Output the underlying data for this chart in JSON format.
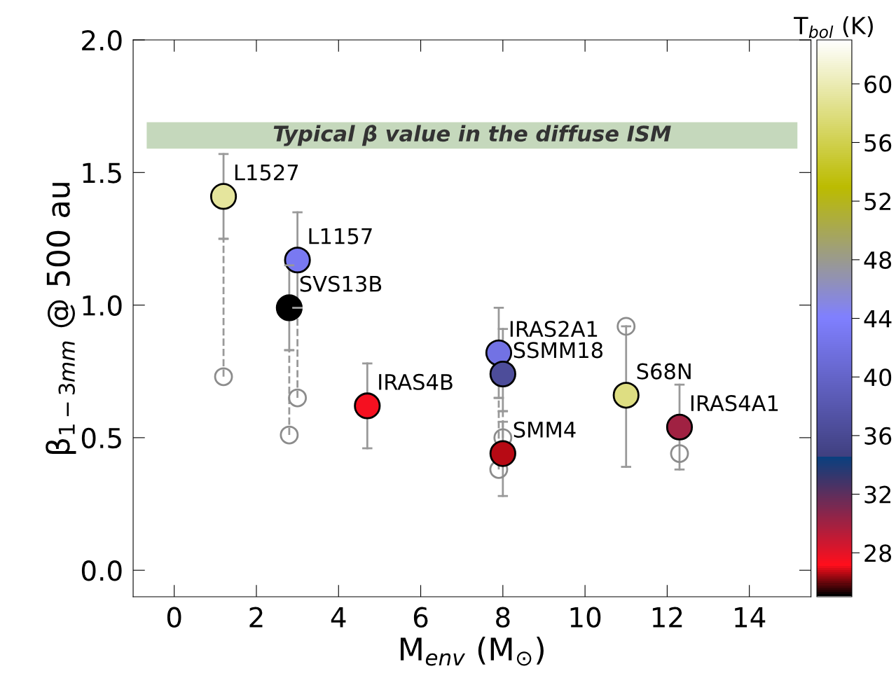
{
  "chart_data": {
    "type": "scatter",
    "xlabel": "M$_{env}$ (M$_{⊙}$)",
    "ylabel": "β$_{1−3mm}$ @ 500 au",
    "clabel": "T$_{bol}$ (K)",
    "xlim": [
      -1,
      15.5
    ],
    "xticks": [
      0,
      2,
      4,
      6,
      8,
      10,
      12,
      14
    ],
    "ylim": [
      -0.1,
      2.0
    ],
    "yticks": [
      {
        "value": 0,
        "label": "0.0"
      },
      {
        "value": 0.5,
        "label": "0.5"
      },
      {
        "value": 1.0,
        "label": "1.0"
      },
      {
        "value": 1.5,
        "label": "1.5"
      },
      {
        "value": 2.0,
        "label": "2.0"
      }
    ],
    "clim": [
      25,
      63
    ],
    "cticks": [
      28,
      32,
      36,
      40,
      44,
      48,
      52,
      56,
      60
    ],
    "grid": false,
    "legend": false,
    "marker": "circle",
    "bands": [
      {
        "axis": "y",
        "from": 1.59,
        "to": 1.69,
        "label": "Typical β value in the diffuse ISM",
        "color": "#c5d8bc"
      }
    ],
    "series": [
      {
        "x": [
          1.2,
          3.0,
          2.8,
          4.7,
          7.9,
          8.0,
          8.0,
          11.0,
          12.3
        ],
        "values": [
          1.41,
          1.17,
          0.99,
          0.62,
          0.82,
          0.74,
          0.44,
          0.66,
          0.54
        ],
        "cvalues": [
          59,
          43,
          25,
          27.5,
          42,
          36.5,
          26.5,
          58,
          30
        ],
        "color": "#000000",
        "errors": [
          [
            1.25,
            1.57
          ],
          [
            0.99,
            1.35
          ],
          [
            0.83,
            1.15
          ],
          [
            0.46,
            0.78
          ],
          [
            0.65,
            0.99
          ],
          [
            0.6,
            0.91
          ],
          [
            0.28,
            0.56
          ],
          [
            0.39,
            0.92
          ],
          [
            0.38,
            0.7
          ]
        ],
        "line_style": "solid"
      },
      {
        "x": [
          1.2,
          3.0,
          2.8,
          7.9,
          8.0,
          11.0,
          12.3
        ],
        "values": [
          0.73,
          0.65,
          0.51,
          0.38,
          0.5,
          0.92,
          0.44
        ],
        "color": "#8c8c8c",
        "errors": [
          [
            0.73,
            1.25
          ],
          [
            0.65,
            0.99
          ],
          [
            0.51,
            0.83
          ],
          [
            0.38,
            0.65
          ],
          [
            0.5,
            0.6
          ],
          null,
          null
        ],
        "line_style": "dashed"
      }
    ],
    "annotations": [
      {
        "text": "L1527",
        "x": 1.2,
        "y": 1.41
      },
      {
        "text": "L1157",
        "x": 3.0,
        "y": 1.17
      },
      {
        "text": "SVS13B",
        "x": 2.8,
        "y": 0.99
      },
      {
        "text": "IRAS4B",
        "x": 4.7,
        "y": 0.62
      },
      {
        "text": "IRAS2A1",
        "x": 7.9,
        "y": 0.82
      },
      {
        "text": "SSMM18",
        "x": 8.0,
        "y": 0.74
      },
      {
        "text": "SMM4",
        "x": 8.0,
        "y": 0.44
      },
      {
        "text": "S68N",
        "x": 11.0,
        "y": 0.66
      },
      {
        "text": "IRAS4A1",
        "x": 12.3,
        "y": 0.54
      }
    ]
  }
}
